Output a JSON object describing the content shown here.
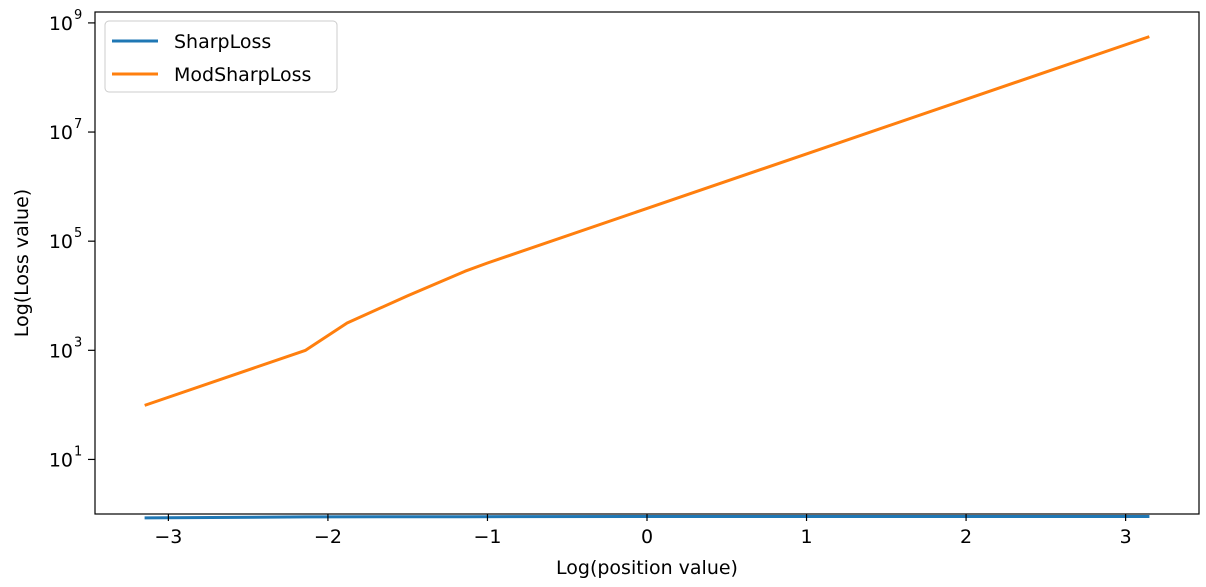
{
  "chart_data": {
    "type": "line",
    "title": "",
    "xlabel": "Log(position value)",
    "ylabel": "Log(Loss value)",
    "xlim": [
      -3.46,
      3.46
    ],
    "ylim": [
      0.0,
      9.2
    ],
    "y_scale": "log",
    "x_ticks": [
      {
        "value": -3,
        "label": "−3"
      },
      {
        "value": -2,
        "label": "−2"
      },
      {
        "value": -1,
        "label": "−1"
      },
      {
        "value": 0,
        "label": "0"
      },
      {
        "value": 1,
        "label": "1"
      },
      {
        "value": 2,
        "label": "2"
      },
      {
        "value": 3,
        "label": "3"
      }
    ],
    "y_ticks": [
      {
        "value": 1,
        "base": "10",
        "exp": "1"
      },
      {
        "value": 3,
        "base": "10",
        "exp": "3"
      },
      {
        "value": 5,
        "base": "10",
        "exp": "5"
      },
      {
        "value": 7,
        "base": "10",
        "exp": "7"
      },
      {
        "value": 9,
        "base": "10",
        "exp": "9"
      }
    ],
    "grid": false,
    "legend_position": "top-left",
    "series": [
      {
        "name": "SharpLoss",
        "color": "#1f77b4",
        "x": [
          -3.14,
          -2.14,
          -1.14,
          0.0,
          1.14,
          2.14,
          3.14
        ],
        "y": [
          -0.071,
          -0.054,
          -0.05,
          -0.046,
          -0.046,
          -0.046,
          -0.046
        ]
      },
      {
        "name": "ModSharpLoss",
        "color": "#ff7f0e",
        "x": [
          -3.14,
          -2.14,
          -1.88,
          -1.5,
          -1.14,
          -1.0,
          0.0,
          1.0,
          2.0,
          3.14
        ],
        "y": [
          2.0,
          3.0,
          3.5,
          4.0,
          4.45,
          4.6,
          5.6,
          6.6,
          7.6,
          8.74
        ]
      }
    ]
  }
}
